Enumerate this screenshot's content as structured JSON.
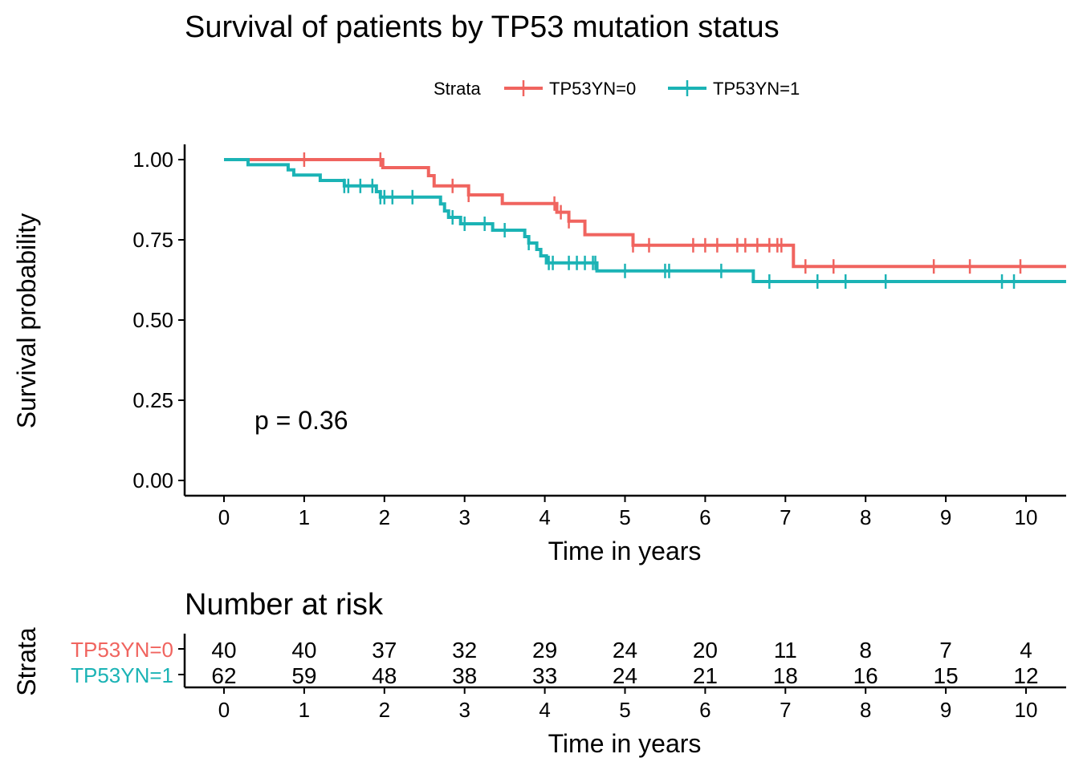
{
  "chart_data": [
    {
      "type": "line",
      "subtype": "kaplan-meier step",
      "title": "Survival of patients by TP53 mutation status",
      "xlabel": "Time in years",
      "ylabel": "Survival probability",
      "xlim": [
        0,
        10.5
      ],
      "ylim": [
        0,
        1
      ],
      "x_ticks": [
        0,
        1,
        2,
        3,
        4,
        5,
        6,
        7,
        8,
        9,
        10
      ],
      "y_ticks": [
        0,
        0.25,
        0.5,
        0.75,
        1
      ],
      "y_tick_labels": [
        "0.00",
        "0.25",
        "0.50",
        "0.75",
        "1.00"
      ],
      "grid": false,
      "legend": {
        "title": "Strata",
        "position": "top"
      },
      "annotation": "p = 0.36",
      "annotation_at": [
        0.38,
        0.19
      ],
      "series": [
        {
          "name": "TP53YN=0",
          "color": "#F0645F",
          "steps": [
            [
              0,
              1.0
            ],
            [
              1.98,
              0.975
            ],
            [
              2.55,
              0.95
            ],
            [
              2.62,
              0.918
            ],
            [
              3.05,
              0.89
            ],
            [
              3.47,
              0.863
            ],
            [
              4.15,
              0.836
            ],
            [
              4.3,
              0.808
            ],
            [
              4.5,
              0.766
            ],
            [
              5.1,
              0.733
            ],
            [
              7.1,
              0.667
            ],
            [
              10.5,
              0.667
            ]
          ],
          "censor_x": [
            1.0,
            1.95,
            2.85,
            3.05,
            4.12,
            4.2,
            4.3,
            5.1,
            5.3,
            5.85,
            6.0,
            6.15,
            6.4,
            6.5,
            6.65,
            6.8,
            6.9,
            6.95,
            7.25,
            7.6,
            8.85,
            9.3,
            9.93
          ]
        },
        {
          "name": "TP53YN=1",
          "color": "#1BB3B5",
          "steps": [
            [
              0,
              1.0
            ],
            [
              0.3,
              0.984
            ],
            [
              0.8,
              0.968
            ],
            [
              0.87,
              0.952
            ],
            [
              1.2,
              0.935
            ],
            [
              1.5,
              0.918
            ],
            [
              1.9,
              0.9
            ],
            [
              1.95,
              0.883
            ],
            [
              2.7,
              0.862
            ],
            [
              2.75,
              0.84
            ],
            [
              2.8,
              0.82
            ],
            [
              2.95,
              0.8
            ],
            [
              3.35,
              0.78
            ],
            [
              3.75,
              0.76
            ],
            [
              3.8,
              0.74
            ],
            [
              3.9,
              0.72
            ],
            [
              3.95,
              0.7
            ],
            [
              4.02,
              0.678
            ],
            [
              4.65,
              0.653
            ],
            [
              6.6,
              0.62
            ],
            [
              10.5,
              0.62
            ]
          ],
          "censor_x": [
            1.5,
            1.55,
            1.7,
            1.85,
            1.95,
            2.0,
            2.1,
            2.35,
            2.85,
            3.0,
            3.25,
            3.5,
            3.8,
            4.05,
            4.1,
            4.3,
            4.4,
            4.5,
            4.6,
            4.63,
            5.0,
            5.5,
            5.55,
            6.2,
            6.8,
            7.4,
            7.75,
            8.25,
            9.7,
            9.85
          ]
        }
      ]
    },
    {
      "type": "table",
      "title": "Number at risk",
      "xlabel": "Time in years",
      "ylabel": "Strata",
      "x_ticks": [
        0,
        1,
        2,
        3,
        4,
        5,
        6,
        7,
        8,
        9,
        10
      ],
      "rows": [
        {
          "name": "TP53YN=0",
          "color": "#F0645F",
          "values": [
            40,
            40,
            37,
            32,
            29,
            24,
            20,
            11,
            8,
            7,
            4
          ]
        },
        {
          "name": "TP53YN=1",
          "color": "#1BB3B5",
          "values": [
            62,
            59,
            48,
            38,
            33,
            24,
            21,
            18,
            16,
            15,
            12
          ]
        }
      ]
    }
  ]
}
